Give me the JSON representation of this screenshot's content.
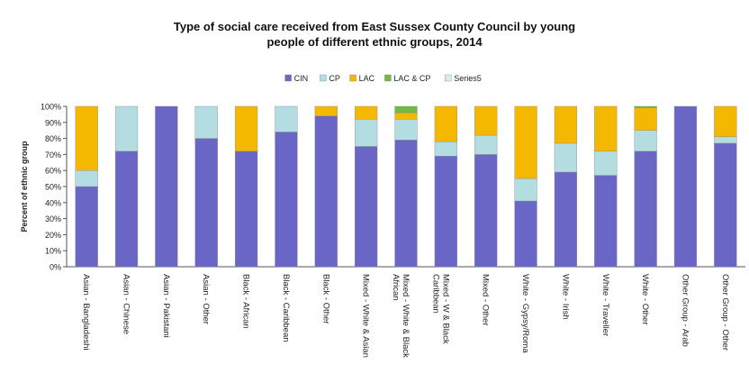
{
  "chart_data": {
    "type": "bar",
    "stacked": true,
    "title_line1": "Type of social care received from East Sussex County Council by young",
    "title_line2": "people of different ethnic groups, 2014",
    "ylabel": "Percent of ethnic group",
    "xlabel": "",
    "ylim": [
      0,
      100
    ],
    "yticks": [
      "0%",
      "10%",
      "20%",
      "30%",
      "40%",
      "50%",
      "60%",
      "70%",
      "80%",
      "90%",
      "100%"
    ],
    "legend_position": "top",
    "categories": [
      "Asian - Bangladeshi",
      "Asian - Chinese",
      "Asian - Pakistani",
      "Asian - Other",
      "Black - African",
      "Black - Caribbean",
      "Black - Other",
      "Mixed - White & Asian",
      "Mixed - White & Black African",
      "Mixed - W & Black Caribbean",
      "Mixed - Other",
      "White - Gypsy/Roma",
      "White - Irish",
      "White - Traveller",
      "White - Other",
      "Other Group - Arab",
      "Other Group - Other"
    ],
    "series": [
      {
        "name": "CIN",
        "color": "#6a66c6",
        "values": [
          50,
          72,
          100,
          80,
          72,
          84,
          94,
          75,
          79,
          69,
          70,
          41,
          59,
          57,
          72,
          100,
          77
        ]
      },
      {
        "name": "CP",
        "color": "#b3dde0",
        "values": [
          10,
          28,
          0,
          20,
          0,
          16,
          0,
          17,
          13,
          9,
          12,
          14,
          18,
          15,
          13,
          0,
          4
        ]
      },
      {
        "name": "LAC",
        "color": "#f5b800",
        "values": [
          40,
          0,
          0,
          0,
          28,
          0,
          6,
          8,
          4,
          22,
          18,
          45,
          23,
          28,
          14,
          0,
          19
        ]
      },
      {
        "name": "LAC & CP",
        "color": "#72b843",
        "values": [
          0,
          0,
          0,
          0,
          0,
          0,
          0,
          0,
          4,
          0,
          0,
          0,
          0,
          0,
          1,
          0,
          0
        ]
      },
      {
        "name": "Series5",
        "color": "#d6ecee",
        "values": [
          0,
          0,
          0,
          0,
          0,
          0,
          0,
          0,
          0,
          0,
          0,
          0,
          0,
          0,
          0,
          0,
          0
        ]
      }
    ]
  }
}
